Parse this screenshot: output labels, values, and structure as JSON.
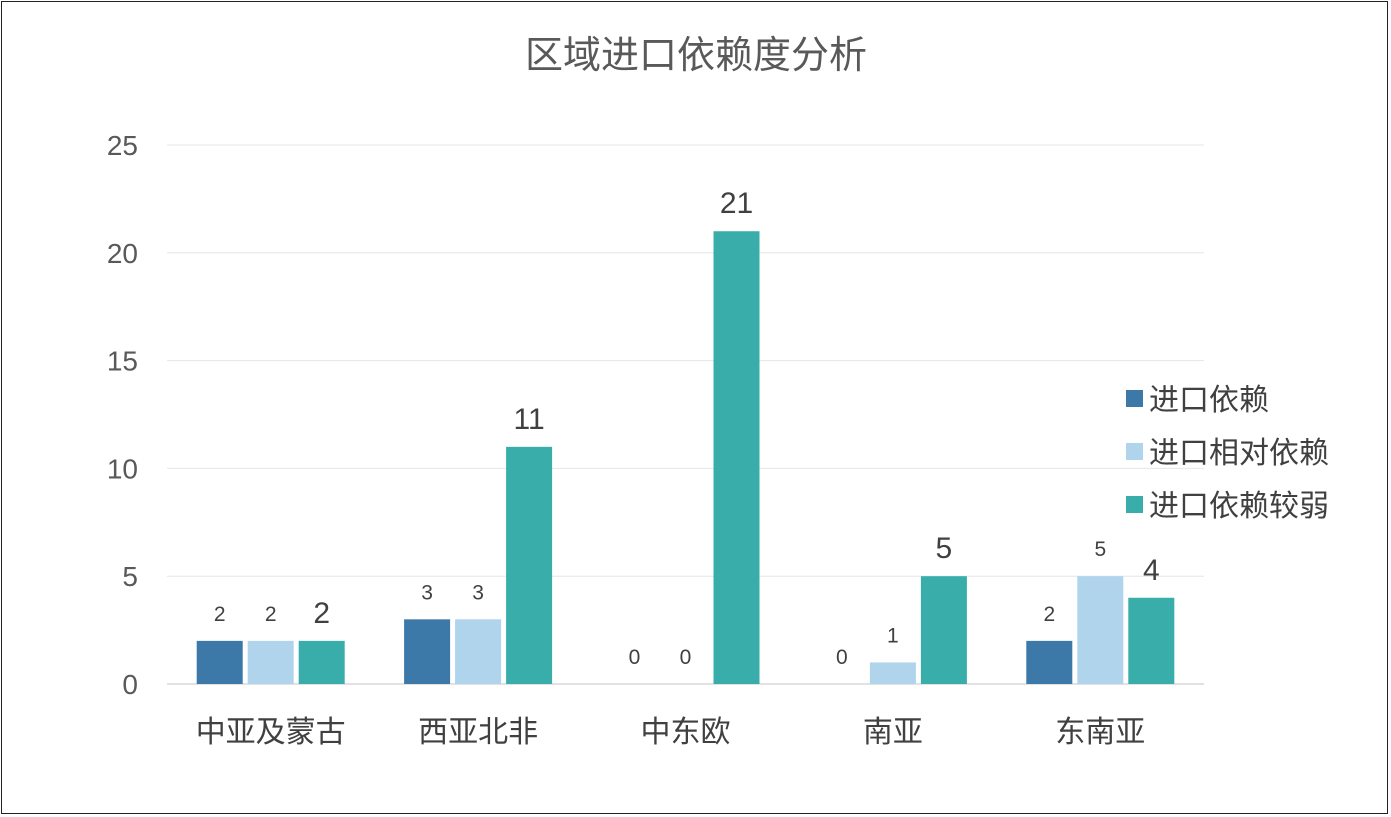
{
  "chart_data": {
    "type": "bar",
    "title": "区域进口依赖度分析",
    "categories": [
      "中亚及蒙古",
      "西亚北非",
      "中东欧",
      "南亚",
      "东南亚"
    ],
    "series": [
      {
        "name": "进口依赖",
        "color": "#3c78a8",
        "values": [
          2,
          3,
          0,
          0,
          2
        ]
      },
      {
        "name": "进口相对依赖",
        "color": "#afd4ec",
        "values": [
          2,
          3,
          0,
          1,
          5
        ]
      },
      {
        "name": "进口依赖较弱",
        "color": "#38ada9",
        "values": [
          2,
          11,
          21,
          5,
          4
        ]
      }
    ],
    "ylim": [
      0,
      25
    ],
    "yticks": [
      0,
      5,
      10,
      15,
      20,
      25
    ],
    "xlabel": "",
    "ylabel": "",
    "grid": true,
    "legend": "right"
  }
}
